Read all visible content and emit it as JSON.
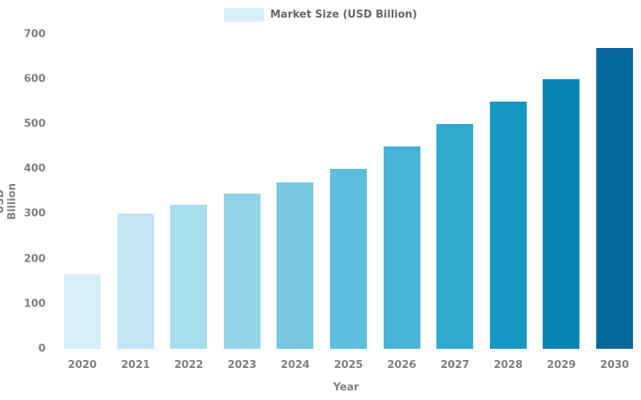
{
  "chart_data": {
    "type": "bar",
    "title": "",
    "categories": [
      "2020",
      "2021",
      "2022",
      "2023",
      "2024",
      "2025",
      "2026",
      "2027",
      "2028",
      "2029",
      "2030"
    ],
    "values": [
      165,
      300,
      320,
      345,
      370,
      400,
      450,
      500,
      550,
      600,
      670
    ],
    "xlabel": "Year",
    "ylabel": "USD Billion",
    "ylim": [
      0,
      700
    ],
    "yticks": [
      0,
      100,
      200,
      300,
      400,
      500,
      600,
      700
    ],
    "grid": false,
    "legend": {
      "label": "Market Size (USD Billion)",
      "position": "upper center",
      "swatch_color": "#d6eef8"
    },
    "bar_colors": [
      "#d6eef8",
      "#c1e5f2",
      "#a8ddee",
      "#90d2e8",
      "#77c8e2",
      "#5ebddc",
      "#47b3d6",
      "#2fa9d0",
      "#1697c3",
      "#0984b2",
      "#06699c"
    ],
    "colors": {
      "tick_label": "#7f7f7f",
      "legend_text": "#666666",
      "background": "#ffffff"
    }
  }
}
